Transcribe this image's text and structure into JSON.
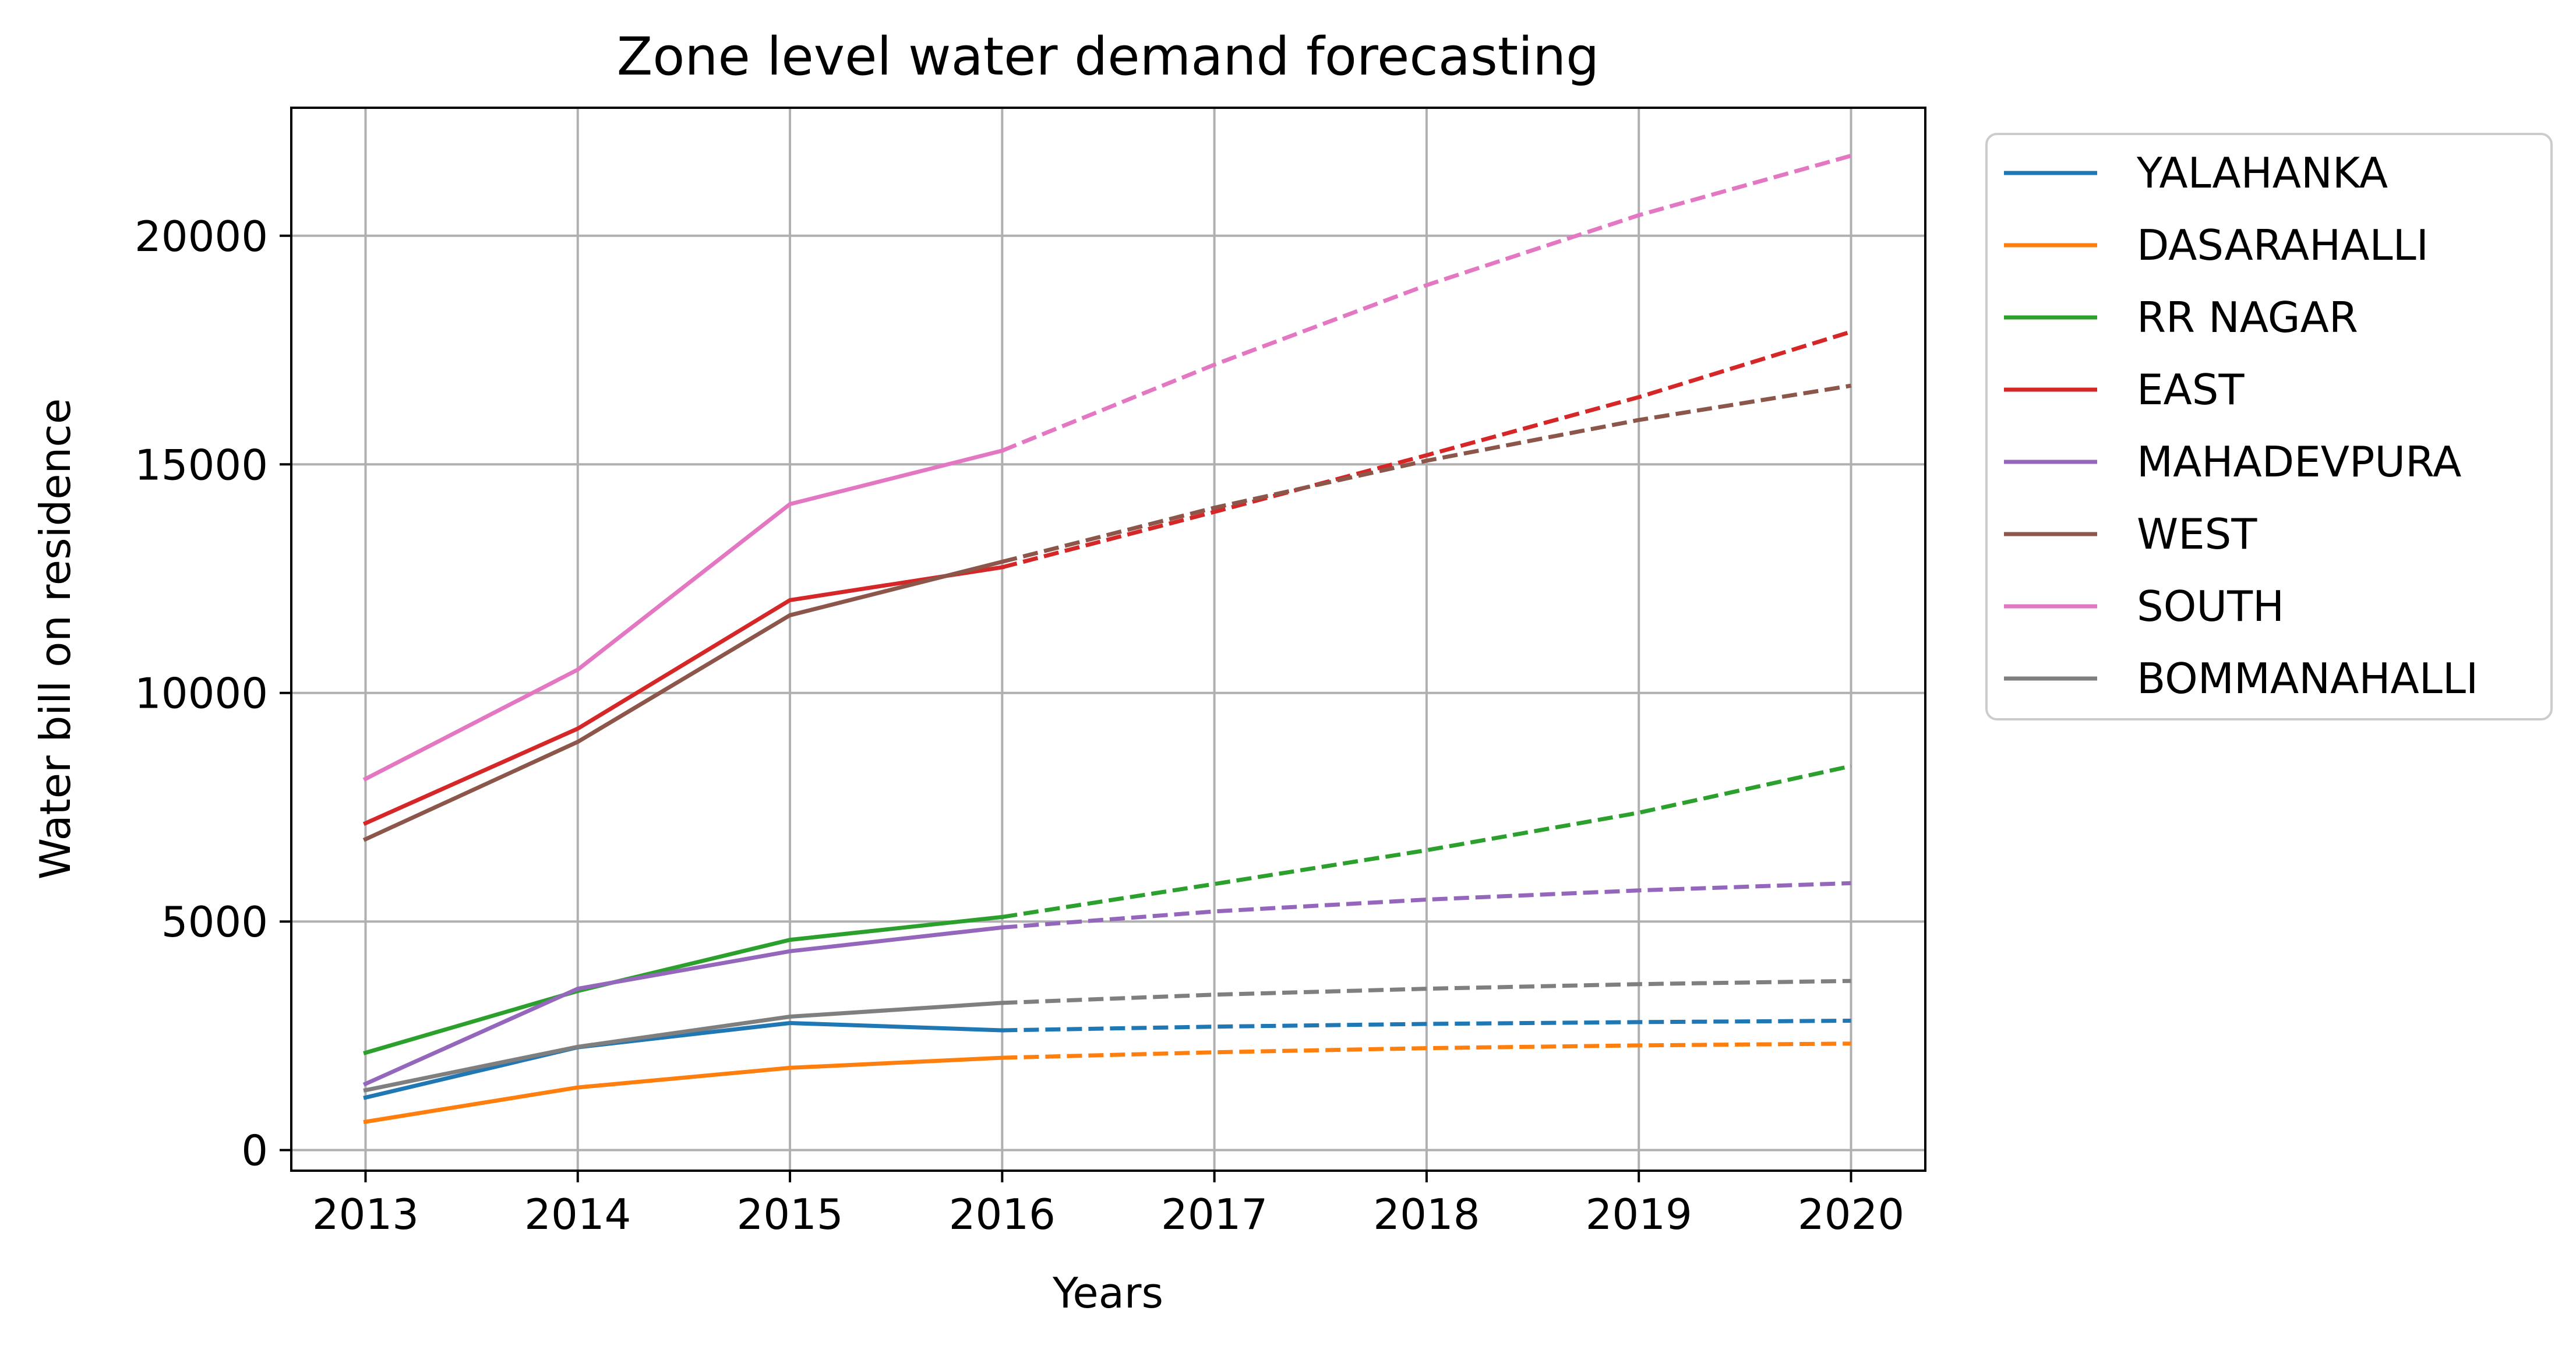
{
  "chart_data": {
    "type": "line",
    "title": "Zone level water demand forecasting",
    "xlabel": "Years",
    "ylabel": "Water bill on residence",
    "x": [
      2013,
      2014,
      2015,
      2016,
      2017,
      2018,
      2019,
      2020
    ],
    "xlim": [
      2012.65,
      2020.35
    ],
    "ylim": [
      -450,
      22800
    ],
    "xticks": [
      "2013",
      "2014",
      "2015",
      "2016",
      "2017",
      "2018",
      "2019",
      "2020"
    ],
    "yticks": [
      {
        "value": 0,
        "label": "0"
      },
      {
        "value": 5000,
        "label": "5000"
      },
      {
        "value": 10000,
        "label": "10000"
      },
      {
        "value": 15000,
        "label": "15000"
      },
      {
        "value": 20000,
        "label": "20000"
      }
    ],
    "grid": true,
    "legend_position": "outside-right",
    "actual_range": [
      2013,
      2016
    ],
    "forecast_range": [
      2016,
      2020
    ],
    "forecast_style": "dashed",
    "series": [
      {
        "name": "YALAHANKA",
        "color": "#1f77b4",
        "values": [
          1150,
          2250,
          2780,
          2620,
          2700,
          2760,
          2800,
          2830
        ]
      },
      {
        "name": "DASARAHALLI",
        "color": "#ff7f0e",
        "values": [
          620,
          1370,
          1800,
          2020,
          2140,
          2230,
          2290,
          2330
        ]
      },
      {
        "name": "RR NAGAR",
        "color": "#2ca02c",
        "values": [
          2130,
          3480,
          4600,
          5100,
          5820,
          6560,
          7380,
          8400
        ]
      },
      {
        "name": "EAST",
        "color": "#d62728",
        "values": [
          7150,
          9220,
          12030,
          12750,
          13960,
          15200,
          16470,
          17900
        ]
      },
      {
        "name": "MAHADEVPURA",
        "color": "#9467bd",
        "values": [
          1450,
          3530,
          4350,
          4870,
          5220,
          5480,
          5680,
          5840
        ]
      },
      {
        "name": "WEST",
        "color": "#8c564b",
        "values": [
          6800,
          8930,
          11700,
          12870,
          14050,
          15080,
          15970,
          16720
        ]
      },
      {
        "name": "SOUTH",
        "color": "#e377c2",
        "values": [
          8120,
          10510,
          14130,
          15300,
          17180,
          18920,
          20450,
          21750
        ]
      },
      {
        "name": "BOMMANAHALLI",
        "color": "#7f7f7f",
        "values": [
          1310,
          2260,
          2920,
          3220,
          3400,
          3530,
          3630,
          3700
        ]
      }
    ]
  }
}
